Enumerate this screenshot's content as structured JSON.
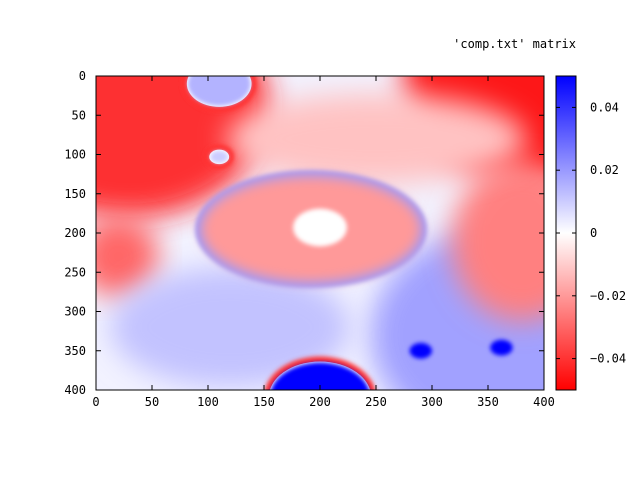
{
  "chart_data": {
    "type": "heatmap",
    "title": "'comp.txt' matrix",
    "xlabel": "",
    "ylabel": "",
    "xlim": [
      0,
      400
    ],
    "ylim": [
      400,
      0
    ],
    "xticks": [
      0,
      50,
      100,
      150,
      200,
      250,
      300,
      350,
      400
    ],
    "yticks": [
      0,
      50,
      100,
      150,
      200,
      250,
      300,
      350,
      400
    ],
    "colorbar": {
      "range": [
        -0.05,
        0.05
      ],
      "ticks": [
        {
          "value": 0.04,
          "label": "0.04"
        },
        {
          "value": 0.02,
          "label": "0.02"
        },
        {
          "value": 0,
          "label": "0"
        },
        {
          "value": -0.02,
          "label": "−0.02"
        },
        {
          "value": -0.04,
          "label": "−0.04"
        }
      ],
      "colors": {
        "low": "#ff0000",
        "mid": "#ffffff",
        "high": "#0000ff"
      }
    },
    "grid": false,
    "features": [
      {
        "shape": "circle",
        "x": 200,
        "y": 193,
        "r": 24,
        "value": 0.0
      },
      {
        "shape": "ellipse",
        "x": 192,
        "y": 195,
        "rx": 100,
        "ry": 70,
        "value": -0.02,
        "rim_value": 0.02
      },
      {
        "shape": "circle",
        "x": 110,
        "y": 10,
        "r": 28,
        "value": 0.015,
        "rim_value": -0.04
      },
      {
        "shape": "circle",
        "x": 110,
        "y": 103,
        "r": 8,
        "value": 0.01,
        "rim_value": -0.04
      },
      {
        "shape": "circle",
        "x": 290,
        "y": 350,
        "r": 10,
        "value": 0.05
      },
      {
        "shape": "circle",
        "x": 362,
        "y": 346,
        "r": 10,
        "value": 0.05
      },
      {
        "shape": "circle",
        "x": 200,
        "y": 410,
        "r": 45,
        "value": 0.05,
        "rim_value": -0.04
      },
      {
        "shape": "region",
        "x": 30,
        "y": 40,
        "value": -0.045
      },
      {
        "shape": "region",
        "x": 400,
        "y": 0,
        "value": -0.05
      },
      {
        "shape": "region",
        "x": 370,
        "y": 330,
        "value": 0.02
      }
    ]
  }
}
